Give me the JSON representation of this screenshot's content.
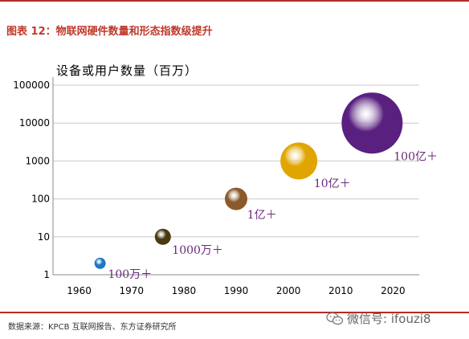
{
  "figure_title": "图表 12：物联网硬件数量和形态指数级提升",
  "source": "数据来源：KPCB 互联网报告、东方证券研究所",
  "watermark": "微信号: ifouzi8",
  "colors": {
    "title": "#c0392b",
    "rule": "#b52a2a",
    "label": "#6b2a7a"
  },
  "chart_data": {
    "type": "scatter",
    "title": "",
    "ylabel": "设备或用户数量（百万）",
    "xlabel": "",
    "y_scale": "log",
    "ylim": [
      1,
      100000
    ],
    "xlim": [
      1955,
      2025
    ],
    "x_ticks": [
      "1960",
      "1970",
      "1980",
      "1990",
      "2000",
      "2010",
      "2020"
    ],
    "y_ticks": [
      "1",
      "10",
      "100",
      "1000",
      "10000",
      "100000"
    ],
    "grid": "horizontal",
    "points": [
      {
        "x": 1964,
        "y": 2,
        "label": "100万＋",
        "color": "#1f77c4",
        "size_rank": 1
      },
      {
        "x": 1976,
        "y": 10,
        "label": "1000万＋",
        "color": "#4a3a10",
        "size_rank": 2
      },
      {
        "x": 1990,
        "y": 100,
        "label": "1亿＋",
        "color": "#8b5a2b",
        "size_rank": 3
      },
      {
        "x": 2002,
        "y": 1000,
        "label": "10亿＋",
        "color": "#e0a500",
        "size_rank": 4
      },
      {
        "x": 2016,
        "y": 10000,
        "label": "100亿＋",
        "color": "#5a2080",
        "size_rank": 5
      }
    ]
  }
}
